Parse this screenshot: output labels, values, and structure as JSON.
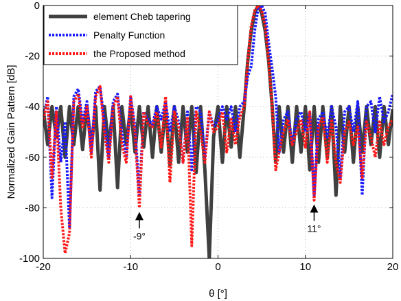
{
  "chart_data": {
    "type": "line",
    "xlabel": "θ [°]",
    "ylabel": "Normalized Gain Pattern [dB]",
    "xlim": [
      -20,
      20
    ],
    "ylim": [
      -100,
      0
    ],
    "xticks": [
      -20,
      -10,
      0,
      10,
      20
    ],
    "yticks": [
      0,
      -20,
      -40,
      -60,
      -80,
      -100
    ],
    "xtick_labels": [
      "-20",
      "-10",
      "0",
      "10",
      "20"
    ],
    "ytick_labels": [
      "0",
      "-20",
      "-40",
      "-60",
      "-80",
      "-100"
    ],
    "grid": true,
    "legend_position": "top-left",
    "series": [
      {
        "name": "element Cheb tapering",
        "color": "#404040",
        "style": "solid",
        "x": [
          -20,
          -19.5,
          -19.0,
          -18.5,
          -18.0,
          -17.5,
          -17.0,
          -16.5,
          -16.0,
          -15.5,
          -15.0,
          -14.5,
          -14.0,
          -13.5,
          -13.0,
          -12.5,
          -12.0,
          -11.5,
          -11.0,
          -10.5,
          -10.0,
          -9.5,
          -9.0,
          -8.5,
          -8.0,
          -7.5,
          -7.0,
          -6.5,
          -6.0,
          -5.5,
          -5.0,
          -4.5,
          -4.0,
          -3.5,
          -3.0,
          -2.5,
          -2.0,
          -1.5,
          -1.0,
          -0.5,
          0.0,
          0.5,
          1.0,
          1.5,
          2.0,
          2.5,
          3.0,
          3.4,
          3.8,
          4.2,
          4.6,
          5.0,
          5.4,
          5.8,
          6.2,
          6.6,
          7.0,
          7.5,
          8.0,
          8.5,
          9.0,
          9.5,
          10.0,
          10.5,
          11.0,
          11.5,
          12.0,
          12.5,
          13.0,
          13.5,
          14.0,
          14.5,
          15.0,
          15.5,
          16.0,
          16.5,
          17.0,
          17.5,
          18.0,
          18.5,
          19.0,
          19.5,
          20.0
        ],
        "y": [
          -41,
          -55,
          -40,
          -52,
          -40,
          -60,
          -40,
          -55,
          -40,
          -57,
          -40,
          -56,
          -40,
          -73,
          -40,
          -56,
          -40,
          -72,
          -40,
          -55,
          -40,
          -58,
          -40,
          -56,
          -40,
          -60,
          -40,
          -58,
          -40,
          -63,
          -40,
          -62,
          -40,
          -58,
          -40,
          -66,
          -40,
          -65,
          -100,
          -52,
          -40,
          -62,
          -40,
          -56,
          -40,
          -60,
          -40,
          -22,
          -10,
          -3,
          0,
          -3,
          -10,
          -22,
          -40,
          -62,
          -40,
          -58,
          -40,
          -62,
          -40,
          -58,
          -40,
          -65,
          -40,
          -62,
          -40,
          -60,
          -40,
          -75,
          -40,
          -58,
          -40,
          -62,
          -40,
          -58,
          -40,
          -55,
          -40,
          -60,
          -40,
          -55,
          -41
        ]
      },
      {
        "name": "Penalty Function",
        "color": "#1a1aff",
        "style": "dotted",
        "x": [
          -20,
          -19.5,
          -19.0,
          -18.5,
          -18.0,
          -17.5,
          -17.0,
          -16.5,
          -16.0,
          -15.5,
          -15.0,
          -14.5,
          -14.0,
          -13.5,
          -13.0,
          -12.5,
          -12.0,
          -11.5,
          -11.0,
          -10.5,
          -10.0,
          -9.5,
          -9.0,
          -8.5,
          -8.0,
          -7.5,
          -7.0,
          -6.5,
          -6.0,
          -5.5,
          -5.0,
          -4.5,
          -4.0,
          -3.5,
          -3.0,
          -2.5,
          -2.0,
          -1.5,
          -1.0,
          -0.5,
          0.0,
          0.5,
          1.0,
          1.5,
          2.0,
          2.5,
          3.0,
          3.4,
          3.8,
          4.2,
          4.6,
          5.0,
          5.4,
          5.8,
          6.2,
          6.6,
          7.0,
          7.5,
          8.0,
          8.5,
          9.0,
          9.5,
          10.0,
          10.5,
          11.0,
          11.5,
          12.0,
          12.5,
          13.0,
          13.5,
          14.0,
          14.5,
          15.0,
          15.5,
          16.0,
          16.5,
          17.0,
          17.5,
          18.0,
          18.5,
          19.0,
          19.5,
          20.0
        ],
        "y": [
          -45,
          -36,
          -76,
          -40,
          -62,
          -46,
          -88,
          -36,
          -33,
          -46,
          -38,
          -58,
          -34,
          -32,
          -46,
          -60,
          -38,
          -35,
          -50,
          -60,
          -36,
          -48,
          -75,
          -42,
          -45,
          -47,
          -40,
          -45,
          -38,
          -50,
          -40,
          -46,
          -62,
          -42,
          -65,
          -40,
          -42,
          -60,
          -42,
          -48,
          -45,
          -40,
          -45,
          -40,
          -50,
          -40,
          -38,
          -28,
          -24,
          -10,
          -1,
          0,
          -3,
          -15,
          -25,
          -36,
          -58,
          -45,
          -42,
          -55,
          -45,
          -42,
          -50,
          -42,
          -75,
          -45,
          -42,
          -52,
          -40,
          -48,
          -68,
          -42,
          -40,
          -50,
          -38,
          -75,
          -40,
          -38,
          -50,
          -36,
          -46,
          -42,
          -35
        ]
      },
      {
        "name": "the Proposed method",
        "color": "#ff1a1a",
        "style": "dotted",
        "x": [
          -20,
          -19.5,
          -19.0,
          -18.5,
          -18.0,
          -17.5,
          -17.0,
          -16.5,
          -16.0,
          -15.5,
          -15.0,
          -14.5,
          -14.0,
          -13.5,
          -13.0,
          -12.5,
          -12.0,
          -11.5,
          -11.0,
          -10.5,
          -10.0,
          -9.5,
          -9.0,
          -8.5,
          -8.0,
          -7.5,
          -7.0,
          -6.5,
          -6.0,
          -5.5,
          -5.0,
          -4.5,
          -4.0,
          -3.5,
          -3.0,
          -2.5,
          -2.0,
          -1.5,
          -1.0,
          -0.5,
          0.0,
          0.5,
          1.0,
          1.5,
          2.0,
          2.5,
          3.0,
          3.4,
          3.8,
          4.2,
          4.6,
          5.0,
          5.4,
          5.8,
          6.2,
          6.6,
          7.0,
          7.5,
          8.0,
          8.5,
          9.0,
          9.5,
          10.0,
          10.5,
          11.0,
          11.5,
          12.0,
          12.5,
          13.0,
          13.5,
          14.0,
          14.5,
          15.0,
          15.5,
          16.0,
          16.5,
          17.0,
          17.5,
          18.0,
          18.5,
          19.0,
          19.5,
          20.0
        ],
        "y": [
          -45,
          -38,
          -68,
          -42,
          -80,
          -98,
          -90,
          -38,
          -35,
          -48,
          -40,
          -60,
          -36,
          -32,
          -50,
          -62,
          -40,
          -36,
          -55,
          -62,
          -36,
          -50,
          -80,
          -42,
          -47,
          -48,
          -42,
          -56,
          -36,
          -70,
          -42,
          -48,
          -62,
          -44,
          -95,
          -42,
          -50,
          -62,
          -42,
          -50,
          -48,
          -42,
          -58,
          -45,
          -55,
          -44,
          -40,
          -22,
          -8,
          -2,
          0,
          -2,
          -8,
          -22,
          -40,
          -65,
          -58,
          -50,
          -45,
          -55,
          -50,
          -45,
          -56,
          -42,
          -77,
          -48,
          -44,
          -62,
          -45,
          -62,
          -70,
          -50,
          -46,
          -55,
          -48,
          -68,
          -46,
          -52,
          -60,
          -46,
          -55,
          -48,
          -45
        ]
      }
    ],
    "annotations": [
      {
        "text": "-9°",
        "x": -9,
        "y": -80
      },
      {
        "text": "11°",
        "x": 11,
        "y": -77
      }
    ]
  }
}
